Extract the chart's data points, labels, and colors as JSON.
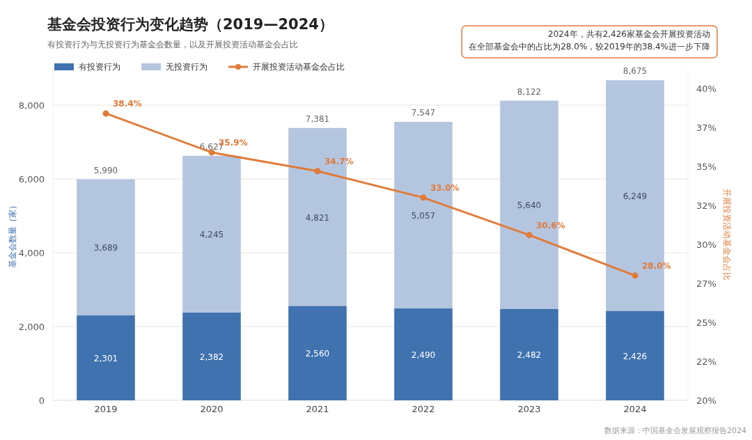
{
  "chart_data": {
    "type": "bar",
    "title": "基金会投资行为变化趋势（2019—2024）",
    "subtitle": "有投资行为与无投资行为基金会数量，以及开展投资活动基金会占比",
    "categories": [
      "2019",
      "2020",
      "2021",
      "2022",
      "2023",
      "2024"
    ],
    "stacked": true,
    "series": [
      {
        "name": "有投资行为",
        "color": "#3f72af",
        "values": [
          2301,
          2382,
          2560,
          2490,
          2482,
          2426
        ],
        "value_labels": [
          "2,301",
          "2,382",
          "2,560",
          "2,490",
          "2,482",
          "2,426"
        ]
      },
      {
        "name": "无投资行为",
        "color": "#b4c5e0",
        "values": [
          3689,
          4245,
          4821,
          5057,
          5640,
          6249
        ],
        "value_labels": [
          "3,689",
          "4,245",
          "4,821",
          "5,057",
          "5,640",
          "6,249"
        ]
      },
      {
        "name": "开展投资活动基金会占比",
        "type": "line",
        "axis": "y2",
        "color": "#e07b39",
        "marker": "circle",
        "values": [
          38.4,
          35.9,
          34.7,
          33.0,
          30.6,
          28.0
        ],
        "value_labels": [
          "38.4%",
          "35.9%",
          "34.7%",
          "33.0%",
          "30.6%",
          "28.0%"
        ]
      }
    ],
    "totals": [
      "5,990",
      "6,627",
      "7,381",
      "7,547",
      "8,122",
      "8,675"
    ],
    "ylim": [
      0,
      9000
    ],
    "yticks": [
      {
        "value": 0,
        "label": "0"
      },
      {
        "value": 2000,
        "label": "2,000"
      },
      {
        "value": 4000,
        "label": "4,000"
      },
      {
        "value": 6000,
        "label": "6,000"
      },
      {
        "value": 8000,
        "label": "8,000"
      }
    ],
    "y2lim": [
      20,
      41.3
    ],
    "y2ticks": [
      {
        "value": 20,
        "label": "20%"
      },
      {
        "value": 22.5,
        "label": "22%"
      },
      {
        "value": 25,
        "label": "25%"
      },
      {
        "value": 27.5,
        "label": "27%"
      },
      {
        "value": 30,
        "label": "30%"
      },
      {
        "value": 32.5,
        "label": "32%"
      },
      {
        "value": 35,
        "label": "35%"
      },
      {
        "value": 37.5,
        "label": "37%"
      },
      {
        "value": 40,
        "label": "40%"
      }
    ],
    "ylabel": "基金会数量（家）",
    "y2label": "开展投资活动基金会占比",
    "grid": "y",
    "legend": "top left",
    "annotations": [
      "2024年，共有2,426家基金会开展投资活动",
      "在全部基金会中的占比为28.0%，较2019年的38.4%进一步下降",
      "数据来源：中国基金会发展观察报告2024"
    ]
  }
}
